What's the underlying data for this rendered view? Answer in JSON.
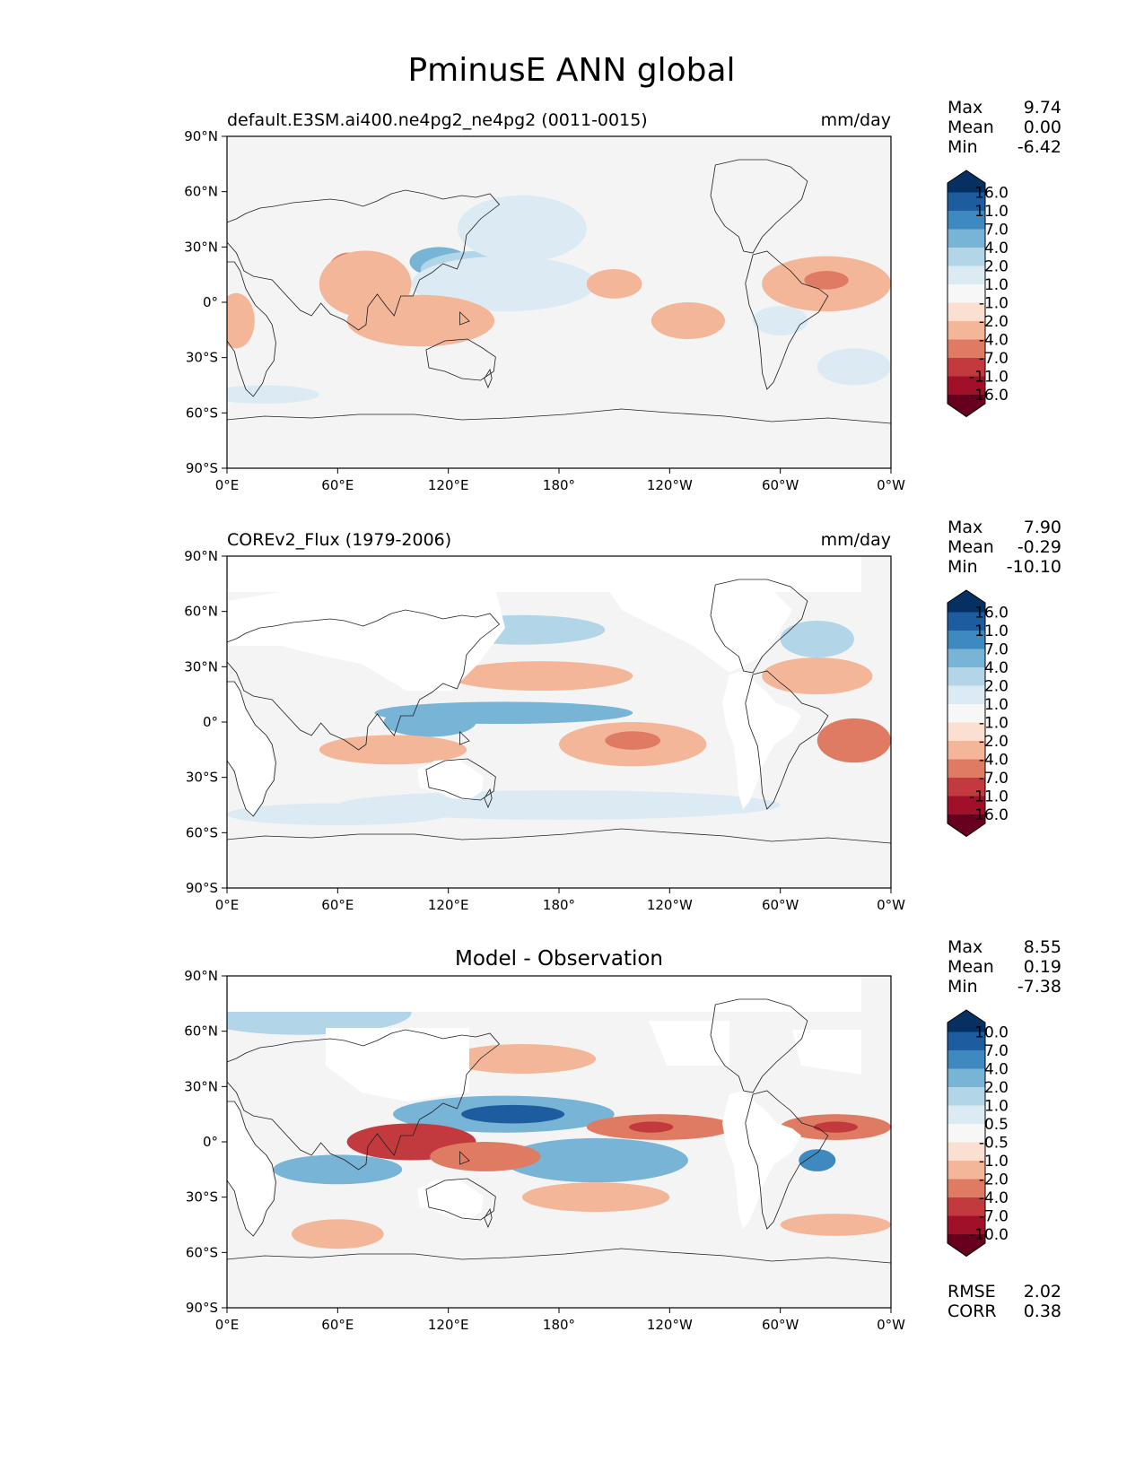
{
  "title": "PminusE ANN global",
  "x_ticks": [
    "0°E",
    "60°E",
    "120°E",
    "180°",
    "120°W",
    "60°W",
    "0°W"
  ],
  "y_ticks": [
    "90°N",
    "60°N",
    "30°N",
    "0°",
    "30°S",
    "60°S",
    "90°S"
  ],
  "panels": [
    {
      "name": "test",
      "left_title": "default.E3SM.ai400.ne4pg2_ne4pg2 (0011-0015)",
      "center_title": "",
      "units": "mm/day",
      "stats": [
        {
          "label": "Max",
          "value": "9.74"
        },
        {
          "label": "Mean",
          "value": "0.00"
        },
        {
          "label": "Min",
          "value": "-6.42"
        }
      ],
      "colorbar_ticks": [
        "16.0",
        "11.0",
        "7.0",
        "4.0",
        "2.0",
        "1.0",
        "-1.0",
        "-2.0",
        "-4.0",
        "-7.0",
        "-11.0",
        "-16.0"
      ]
    },
    {
      "name": "reference",
      "left_title": "COREv2_Flux (1979-2006)",
      "center_title": "",
      "units": "mm/day",
      "stats": [
        {
          "label": "Max",
          "value": "7.90"
        },
        {
          "label": "Mean",
          "value": "-0.29"
        },
        {
          "label": "Min",
          "value": "-10.10"
        }
      ],
      "colorbar_ticks": [
        "16.0",
        "11.0",
        "7.0",
        "4.0",
        "2.0",
        "1.0",
        "-1.0",
        "-2.0",
        "-4.0",
        "-7.0",
        "-11.0",
        "-16.0"
      ]
    },
    {
      "name": "difference",
      "left_title": "",
      "center_title": "Model - Observation",
      "units": "",
      "stats": [
        {
          "label": "Max",
          "value": "8.55"
        },
        {
          "label": "Mean",
          "value": "0.19"
        },
        {
          "label": "Min",
          "value": "-7.38"
        }
      ],
      "colorbar_ticks": [
        "10.0",
        "7.0",
        "4.0",
        "2.0",
        "1.0",
        "0.5",
        "-0.5",
        "-1.0",
        "-2.0",
        "-4.0",
        "-7.0",
        "-10.0"
      ],
      "metrics": [
        {
          "label": "RMSE",
          "value": "2.02"
        },
        {
          "label": "CORR",
          "value": "0.38"
        }
      ]
    }
  ],
  "colors": {
    "colorbar": [
      "#053061",
      "#1c5c9f",
      "#3d89c0",
      "#77b4d5",
      "#b2d5e7",
      "#dcebf3",
      "#f7f7f7",
      "#fbdfd0",
      "#f4b698",
      "#e07b63",
      "#c33a3e",
      "#a01028",
      "#67001f"
    ],
    "map_background": "#f4f4f4",
    "land_masked": "#ffffff"
  },
  "fields": {
    "test": [
      {
        "type": "ellipse",
        "lon": 115,
        "lat": 22,
        "rlon": 16,
        "rlat": 8,
        "level": 3
      },
      {
        "type": "ellipse",
        "lon": 140,
        "lat": 18,
        "rlon": 35,
        "rlat": 10,
        "level": 4
      },
      {
        "type": "ellipse",
        "lon": 150,
        "lat": 10,
        "rlon": 50,
        "rlat": 15,
        "level": 5
      },
      {
        "type": "ellipse",
        "lon": 160,
        "lat": 40,
        "rlon": 35,
        "rlat": 18,
        "level": 5
      },
      {
        "type": "ellipse",
        "lon": 66,
        "lat": 15,
        "rlon": 12,
        "rlat": 12,
        "level": 9
      },
      {
        "type": "ellipse",
        "lon": 75,
        "lat": 10,
        "rlon": 25,
        "rlat": 18,
        "level": 8
      },
      {
        "type": "ellipse",
        "lon": 105,
        "lat": -10,
        "rlon": 40,
        "rlat": 14,
        "level": 8
      },
      {
        "type": "ellipse",
        "lon": 210,
        "lat": 10,
        "rlon": 15,
        "rlat": 8,
        "level": 8
      },
      {
        "type": "ellipse",
        "lon": 250,
        "lat": -10,
        "rlon": 20,
        "rlat": 10,
        "level": 8
      },
      {
        "type": "ellipse",
        "lon": 325,
        "lat": 10,
        "rlon": 35,
        "rlat": 15,
        "level": 8
      },
      {
        "type": "ellipse",
        "lon": 325,
        "lat": 12,
        "rlon": 12,
        "rlat": 5,
        "level": 9
      },
      {
        "type": "ellipse",
        "lon": 5,
        "lat": -10,
        "rlon": 10,
        "rlat": 15,
        "level": 8
      },
      {
        "type": "ellipse",
        "lon": 300,
        "lat": -10,
        "rlon": 15,
        "rlat": 8,
        "level": 5
      },
      {
        "type": "ellipse",
        "lon": 20,
        "lat": -50,
        "rlon": 30,
        "rlat": 5,
        "level": 5
      },
      {
        "type": "ellipse",
        "lon": 340,
        "lat": -35,
        "rlon": 20,
        "rlat": 10,
        "level": 5
      }
    ],
    "reference": [
      {
        "type": "ellipse",
        "lon": 160,
        "lat": 50,
        "rlon": 45,
        "rlat": 8,
        "level": 4
      },
      {
        "type": "ellipse",
        "lon": 150,
        "lat": 5,
        "rlon": 70,
        "rlat": 6,
        "level": 3
      },
      {
        "type": "ellipse",
        "lon": 110,
        "lat": 0,
        "rlon": 25,
        "rlat": 8,
        "level": 3
      },
      {
        "type": "ellipse",
        "lon": 170,
        "lat": 25,
        "rlon": 50,
        "rlat": 8,
        "level": 8
      },
      {
        "type": "ellipse",
        "lon": 220,
        "lat": -12,
        "rlon": 40,
        "rlat": 12,
        "level": 8
      },
      {
        "type": "ellipse",
        "lon": 220,
        "lat": -10,
        "rlon": 15,
        "rlat": 5,
        "level": 9
      },
      {
        "type": "ellipse",
        "lon": 90,
        "lat": -15,
        "rlon": 40,
        "rlat": 8,
        "level": 8
      },
      {
        "type": "ellipse",
        "lon": 340,
        "lat": -10,
        "rlon": 20,
        "rlat": 12,
        "level": 9
      },
      {
        "type": "ellipse",
        "lon": 320,
        "lat": 25,
        "rlon": 30,
        "rlat": 10,
        "level": 8
      },
      {
        "type": "ellipse",
        "lon": 10,
        "lat": -20,
        "rlon": 8,
        "rlat": 12,
        "level": 8
      },
      {
        "type": "ellipse",
        "lon": 180,
        "lat": -45,
        "rlon": 120,
        "rlat": 8,
        "level": 5
      },
      {
        "type": "ellipse",
        "lon": 60,
        "lat": -50,
        "rlon": 60,
        "rlat": 6,
        "level": 5
      },
      {
        "type": "ellipse",
        "lon": 320,
        "lat": 45,
        "rlon": 20,
        "rlat": 10,
        "level": 4
      }
    ],
    "difference": [
      {
        "type": "ellipse",
        "lon": 150,
        "lat": 15,
        "rlon": 60,
        "rlat": 10,
        "level": 3
      },
      {
        "type": "ellipse",
        "lon": 155,
        "lat": 15,
        "rlon": 28,
        "rlat": 5,
        "level": 1
      },
      {
        "type": "ellipse",
        "lon": 200,
        "lat": -10,
        "rlon": 50,
        "rlat": 12,
        "level": 3
      },
      {
        "type": "ellipse",
        "lon": 100,
        "lat": 0,
        "rlon": 35,
        "rlat": 10,
        "level": 10
      },
      {
        "type": "ellipse",
        "lon": 140,
        "lat": -8,
        "rlon": 30,
        "rlat": 8,
        "level": 9
      },
      {
        "type": "ellipse",
        "lon": 235,
        "lat": 8,
        "rlon": 40,
        "rlat": 7,
        "level": 9
      },
      {
        "type": "ellipse",
        "lon": 230,
        "lat": 8,
        "rlon": 12,
        "rlat": 3,
        "level": 10
      },
      {
        "type": "ellipse",
        "lon": 330,
        "lat": 8,
        "rlon": 30,
        "rlat": 7,
        "level": 9
      },
      {
        "type": "ellipse",
        "lon": 330,
        "lat": 8,
        "rlon": 12,
        "rlat": 3,
        "level": 10
      },
      {
        "type": "ellipse",
        "lon": 320,
        "lat": -10,
        "rlon": 10,
        "rlat": 6,
        "level": 2
      },
      {
        "type": "ellipse",
        "lon": 60,
        "lat": -15,
        "rlon": 35,
        "rlat": 8,
        "level": 3
      },
      {
        "type": "ellipse",
        "lon": 160,
        "lat": 45,
        "rlon": 40,
        "rlat": 8,
        "level": 8
      },
      {
        "type": "ellipse",
        "lon": 200,
        "lat": -30,
        "rlon": 40,
        "rlat": 8,
        "level": 8
      },
      {
        "type": "ellipse",
        "lon": 60,
        "lat": -50,
        "rlon": 25,
        "rlat": 8,
        "level": 8
      },
      {
        "type": "ellipse",
        "lon": 330,
        "lat": -45,
        "rlon": 30,
        "rlat": 6,
        "level": 8
      },
      {
        "type": "ellipse",
        "lon": 40,
        "lat": 70,
        "rlon": 60,
        "rlat": 12,
        "level": 4
      }
    ]
  }
}
